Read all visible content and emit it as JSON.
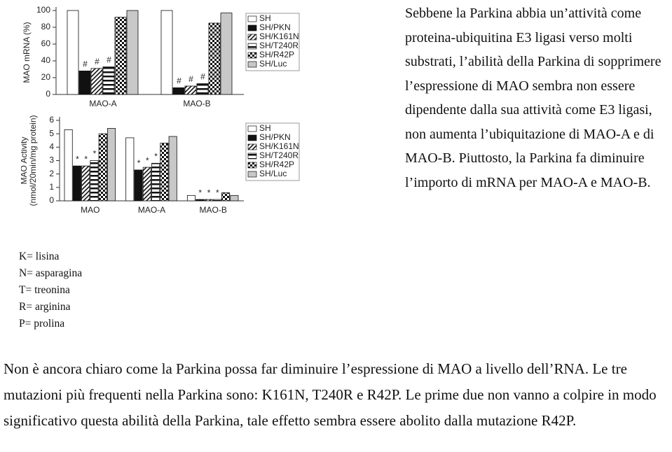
{
  "chart_data": [
    {
      "type": "bar",
      "ylabel": [
        "MAO mRNA (%)"
      ],
      "categories": [
        "MAO-A",
        "MAO-B"
      ],
      "ylim": [
        0,
        100
      ],
      "yticks": [
        0,
        20,
        40,
        60,
        80,
        100
      ],
      "significance_label": "#",
      "series": [
        {
          "name": "SH",
          "color": "#ffffff",
          "values": [
            100,
            100
          ]
        },
        {
          "name": "SH/PKN",
          "color": "#111111",
          "values": [
            28,
            8
          ],
          "significant": true
        },
        {
          "name": "SH/K161N",
          "color": "#111111",
          "pattern": "hatch",
          "values": [
            31,
            10
          ],
          "significant": true
        },
        {
          "name": "SH/T240R",
          "color": "#111111",
          "pattern": "stripes",
          "values": [
            33,
            13
          ],
          "significant": true
        },
        {
          "name": "SH/R42P",
          "color": "#111111",
          "pattern": "checker",
          "values": [
            92,
            85
          ]
        },
        {
          "name": "SH/Luc",
          "color": "#c8c8c8",
          "values": [
            100,
            97
          ]
        }
      ]
    },
    {
      "type": "bar",
      "ylabel": [
        "MAO Activity",
        "(nmol/20min/mg protein)"
      ],
      "categories": [
        "MAO",
        "MAO-A",
        "MAO-B"
      ],
      "ylim": [
        0,
        6
      ],
      "yticks": [
        0,
        1,
        2,
        3,
        4,
        5,
        6
      ],
      "significance_label": "*",
      "series": [
        {
          "name": "SH",
          "color": "#ffffff",
          "values": [
            5.3,
            4.7,
            0.4
          ]
        },
        {
          "name": "SH/PKN",
          "color": "#111111",
          "values": [
            2.6,
            2.3,
            0.1
          ],
          "significant": true
        },
        {
          "name": "SH/K161N",
          "color": "#111111",
          "pattern": "hatch",
          "values": [
            2.6,
            2.5,
            0.1
          ],
          "significant": true
        },
        {
          "name": "SH/T240R",
          "color": "#111111",
          "pattern": "stripes",
          "values": [
            3.0,
            2.8,
            0.1
          ],
          "significant": true
        },
        {
          "name": "SH/R42P",
          "color": "#111111",
          "pattern": "checker",
          "values": [
            5.0,
            4.3,
            0.6
          ]
        },
        {
          "name": "SH/Luc",
          "color": "#c8c8c8",
          "values": [
            5.4,
            4.8,
            0.4
          ]
        }
      ]
    }
  ],
  "notes": [
    "K= lisina",
    "N= asparagina",
    "T= treonina",
    "R= arginina",
    "P= prolina"
  ],
  "side_text": "Sebbene la Parkina abbia un’attività come proteina-ubiquitina E3 ligasi verso molti substrati, l’abilità della Parkina di sopprimere l’espressione di MAO sembra non essere dipendente dalla sua attività come E3 ligasi, non aumenta l’ubiquitazione di MAO-A e di MAO-B. Piuttosto, la Parkina fa diminuire l’importo di mRNA per MAO-A e MAO-B.",
  "bottom_text": "Non è ancora chiaro come la Parkina possa far diminuire l’espressione di MAO a livello dell’RNA. Le tre mutazioni più frequenti nella Parkina sono: K161N, T240R e R42P. Le prime due non vanno a colpire in modo significativo questa abilità della Parkina, tale effetto sembra essere abolito dalla mutazione R42P."
}
